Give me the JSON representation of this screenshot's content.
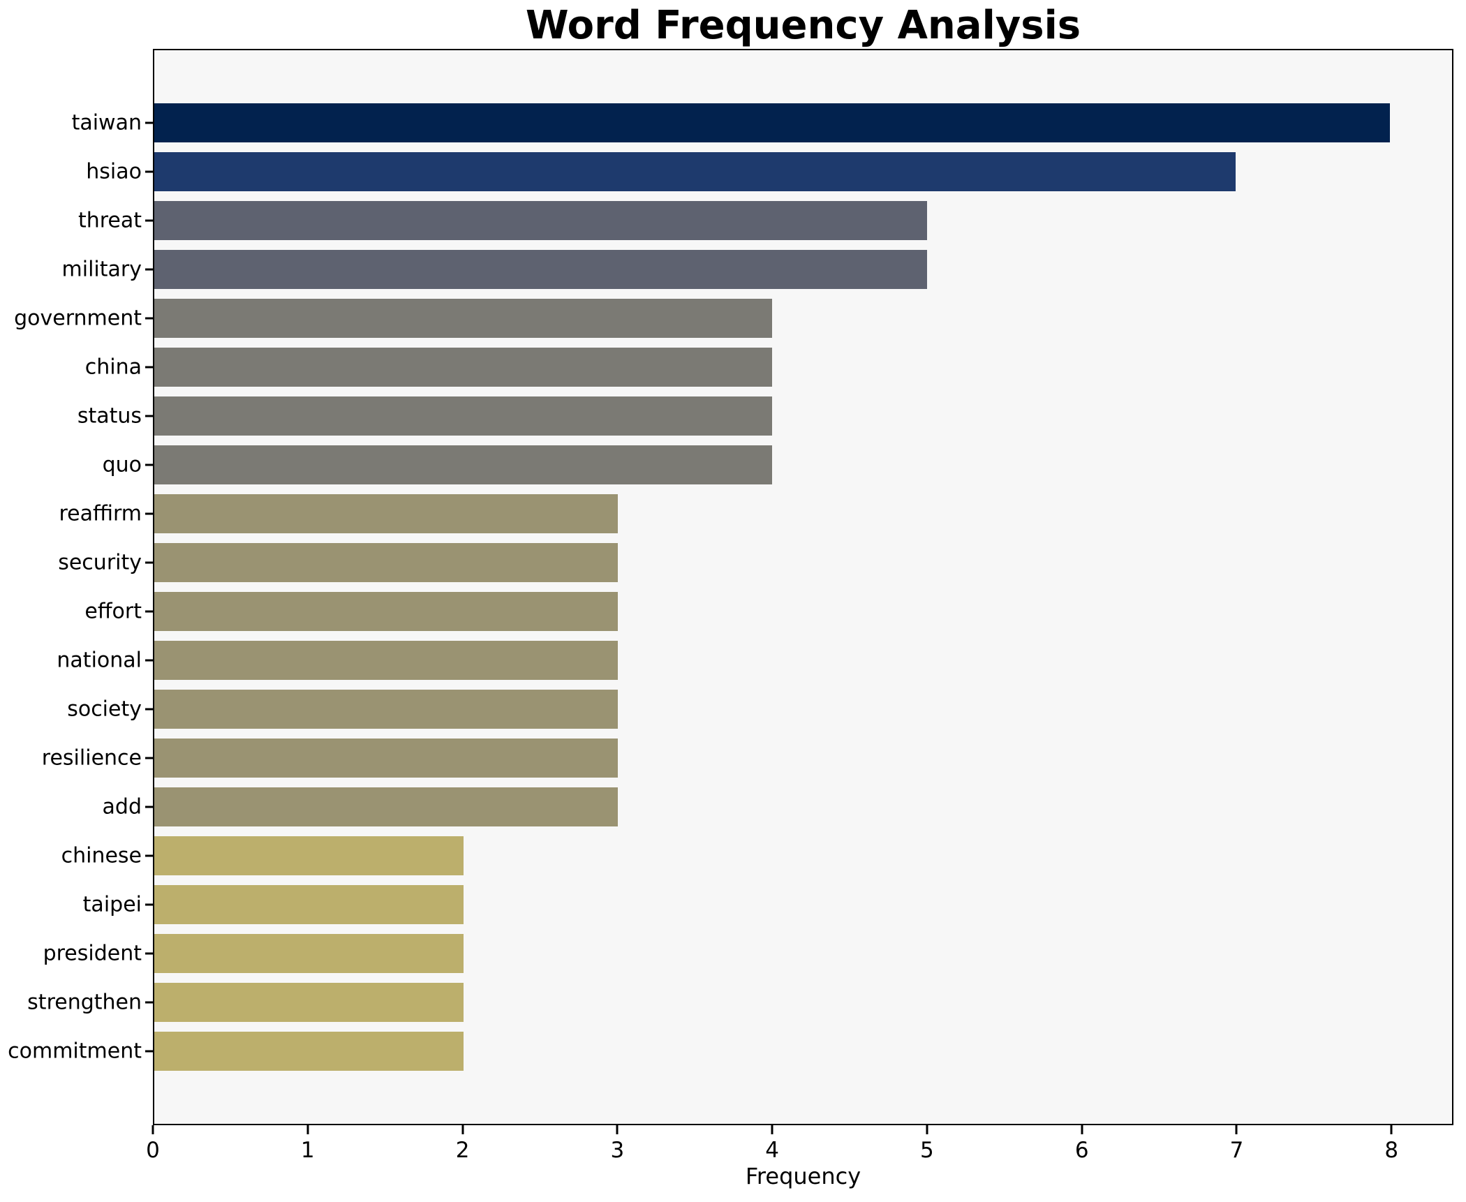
{
  "chart_data": {
    "type": "bar",
    "orientation": "horizontal",
    "title": "Word Frequency Analysis",
    "xlabel": "Frequency",
    "ylabel": "",
    "categories": [
      "taiwan",
      "hsiao",
      "threat",
      "military",
      "government",
      "china",
      "status",
      "quo",
      "reaffirm",
      "security",
      "effort",
      "national",
      "society",
      "resilience",
      "add",
      "chinese",
      "taipei",
      "president",
      "strengthen",
      "commitment"
    ],
    "values": [
      8,
      7,
      5,
      5,
      4,
      4,
      4,
      4,
      3,
      3,
      3,
      3,
      3,
      3,
      3,
      2,
      2,
      2,
      2,
      2
    ],
    "bar_colors": [
      "#02224e",
      "#1e3a6d",
      "#5e6270",
      "#5e6270",
      "#7b7a74",
      "#7b7a74",
      "#7b7a74",
      "#7b7a74",
      "#9a9372",
      "#9a9372",
      "#9a9372",
      "#9a9372",
      "#9a9372",
      "#9a9372",
      "#9a9372",
      "#bcaf6c",
      "#bcaf6c",
      "#bcaf6c",
      "#bcaf6c",
      "#bcaf6c"
    ],
    "xticks": [
      0,
      1,
      2,
      3,
      4,
      5,
      6,
      7,
      8
    ],
    "xlim": [
      0,
      8.4
    ],
    "grid": false,
    "legend_position": "none",
    "plot_background": "#f7f7f7",
    "figure_background": "#ffffff",
    "spine_color": "#000000"
  }
}
